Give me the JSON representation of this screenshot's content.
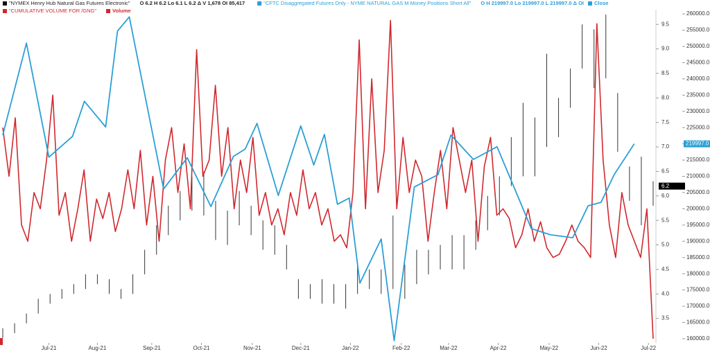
{
  "chart_data": {
    "type": "multi",
    "legend": [
      {
        "name": "\"NYMEX Henry Hub Natural Gas Futures Electronic\"",
        "color": "#111111",
        "stats": "O 6.2  H 6.2  Lo 6.1  L 6.2  Δ  V 1,678  OI 85,417"
      },
      {
        "name": "\"CFTC Disaggregated Futures Only - NYME NATURAL GAS M Money Positions Short All\"",
        "color": "#2a9fd6",
        "stats": "O  H 219997.0  Lo 219997.0  L 219997.0  Δ  OI",
        "extra": "Close"
      },
      {
        "name": "\"CUMULATIVE VOLUME FOR /GNG\"",
        "color": "#d0282e",
        "extra": "Volume"
      }
    ],
    "xlim": [
      0,
      55
    ],
    "xticks": [
      {
        "value": 3.9,
        "label": "Jul-21"
      },
      {
        "value": 8.0,
        "label": "Aug-21"
      },
      {
        "value": 12.6,
        "label": "Sep-21"
      },
      {
        "value": 16.8,
        "label": "Oct-21"
      },
      {
        "value": 21.1,
        "label": "Nov-21"
      },
      {
        "value": 25.2,
        "label": "Dec-21"
      },
      {
        "value": 29.4,
        "label": "Jan-22"
      },
      {
        "value": 33.7,
        "label": "Feb-22"
      },
      {
        "value": 37.7,
        "label": "Mar-22"
      },
      {
        "value": 41.9,
        "label": "Apr-22"
      },
      {
        "value": 46.2,
        "label": "May-22"
      },
      {
        "value": 50.4,
        "label": "Jun-22"
      },
      {
        "value": 54.6,
        "label": "Jul-22"
      }
    ],
    "ylim": [
      3.0,
      9.8
    ],
    "yticks": [
      {
        "value": 3.5,
        "label": "3.5"
      },
      {
        "value": 4.0,
        "label": "4.0"
      },
      {
        "value": 4.5,
        "label": "4.5"
      },
      {
        "value": 5.0,
        "label": "5.0"
      },
      {
        "value": 5.5,
        "label": "5.5"
      },
      {
        "value": 6.0,
        "label": "6.0"
      },
      {
        "value": 6.5,
        "label": "6.5"
      },
      {
        "value": 7.0,
        "label": "7.0"
      },
      {
        "value": 7.5,
        "label": "7.5"
      },
      {
        "value": 8.0,
        "label": "8.0"
      },
      {
        "value": 8.5,
        "label": "8.5"
      },
      {
        "value": 9.0,
        "label": "9.0"
      },
      {
        "value": 9.5,
        "label": "9.5"
      }
    ],
    "y2lim": [
      158700,
      261300
    ],
    "y2ticks": [
      {
        "value": 160000,
        "label": "160000.0"
      },
      {
        "value": 165000,
        "label": "165000.0"
      },
      {
        "value": 170000,
        "label": "170000.0"
      },
      {
        "value": 175000,
        "label": "175000.0"
      },
      {
        "value": 180000,
        "label": "180000.0"
      },
      {
        "value": 185000,
        "label": "185000.0"
      },
      {
        "value": 190000,
        "label": "190000.0"
      },
      {
        "value": 195000,
        "label": "195000.0"
      },
      {
        "value": 200000,
        "label": "200000.0"
      },
      {
        "value": 205000,
        "label": "205000.0"
      },
      {
        "value": 210000,
        "label": "210000.0"
      },
      {
        "value": 215000,
        "label": "215000.0"
      },
      {
        "value": 220000,
        "label": "220000.0"
      },
      {
        "value": 225000,
        "label": "225000.0"
      },
      {
        "value": 230000,
        "label": "230000.0"
      },
      {
        "value": 235000,
        "label": "235000.0"
      },
      {
        "value": 240000,
        "label": "240000.0"
      },
      {
        "value": 245000,
        "label": "245000.0"
      },
      {
        "value": 250000,
        "label": "250000.0"
      },
      {
        "value": 255000,
        "label": "255000.0"
      },
      {
        "value": 260000,
        "label": "260000.0"
      }
    ],
    "price": {
      "color": "#333333",
      "high": [
        3.3,
        3.4,
        3.6,
        3.9,
        4.0,
        4.1,
        4.2,
        4.4,
        4.4,
        4.3,
        4.1,
        4.4,
        4.9,
        5.4,
        5.8,
        6.1,
        6.4,
        6.5,
        5.9,
        5.7,
        6.1,
        5.8,
        5.5,
        5.4,
        5.0,
        4.3,
        4.2,
        4.3,
        4.2,
        4.2,
        4.6,
        4.5,
        4.5,
        5.6,
        4.6,
        4.9,
        4.9,
        5.0,
        5.2,
        5.2,
        5.5,
        6.0,
        6.4,
        7.2,
        7.9,
        7.6,
        8.9,
        8.0,
        8.6,
        9.5,
        9.4,
        9.7,
        8.1,
        6.6,
        6.8,
        6.3
      ],
      "low": [
        3.1,
        3.2,
        3.4,
        3.6,
        3.8,
        3.9,
        4.0,
        4.1,
        4.2,
        4.0,
        3.9,
        4.0,
        4.4,
        4.8,
        5.2,
        5.5,
        5.7,
        5.6,
        5.1,
        5.0,
        5.4,
        5.2,
        4.9,
        4.8,
        4.5,
        3.9,
        3.9,
        3.8,
        3.8,
        3.7,
        4.0,
        4.1,
        4.0,
        4.1,
        3.9,
        4.2,
        4.4,
        4.5,
        4.5,
        4.5,
        4.9,
        5.3,
        5.6,
        6.2,
        6.4,
        6.4,
        7.0,
        7.2,
        7.8,
        8.6,
        8.2,
        8.4,
        6.9,
        5.9,
        5.4,
        5.8
      ],
      "last": {
        "value": 6.2,
        "label": "6.2"
      }
    },
    "cftc": {
      "color": "#2a9fd6",
      "axis": "y2",
      "x": [
        0,
        2.0,
        3.9,
        5.9,
        6.9,
        8.7,
        9.7,
        10.7,
        13.6,
        15.6,
        17.6,
        19.5,
        20.5,
        21.5,
        23.3,
        25.2,
        26.3,
        27.2,
        28.3,
        29.3,
        30.2,
        32.0,
        33.1,
        34.8,
        36.8,
        37.9,
        39.8,
        41.8,
        44.7,
        46.3,
        48.2,
        49.5,
        50.6,
        51.7,
        53.4
      ],
      "values": [
        222700,
        251000,
        215900,
        222300,
        233100,
        225200,
        254700,
        259100,
        206100,
        215700,
        200700,
        216100,
        218400,
        226300,
        204100,
        225500,
        213500,
        222900,
        201400,
        203300,
        177100,
        190700,
        159400,
        206700,
        210500,
        222700,
        215200,
        219100,
        193900,
        192000,
        191100,
        200900,
        202000,
        210500,
        219997
      ],
      "last": {
        "value": 219997,
        "label": "219997.0"
      }
    },
    "volume": {
      "color": "#d0282e",
      "axis": "y2",
      "values": [
        225000,
        210000,
        228000,
        195000,
        190000,
        205000,
        200000,
        215000,
        235000,
        198000,
        205000,
        190000,
        200000,
        212000,
        190000,
        203000,
        197000,
        205000,
        193000,
        200000,
        212000,
        200000,
        218000,
        195000,
        210000,
        190000,
        215000,
        225000,
        205000,
        220000,
        200000,
        249000,
        210000,
        215000,
        238000,
        210000,
        225000,
        200000,
        215000,
        205000,
        222000,
        198000,
        205000,
        195000,
        200000,
        192000,
        205000,
        198000,
        212000,
        200000,
        205000,
        195000,
        200000,
        190000,
        192000,
        188000,
        205000,
        252000,
        200000,
        240000,
        205000,
        218000,
        258000,
        200000,
        222000,
        205000,
        215000,
        210000,
        190000,
        205000,
        218000,
        200000,
        225000,
        215000,
        205000,
        215000,
        190000,
        213000,
        222000,
        198000,
        200000,
        197000,
        188000,
        192000,
        200000,
        190000,
        196000,
        188000,
        185000,
        186000,
        190000,
        195000,
        190000,
        188000,
        185000,
        257000,
        215000,
        195000,
        185000,
        205000,
        195000,
        190000,
        185000,
        200000,
        160000
      ]
    }
  }
}
